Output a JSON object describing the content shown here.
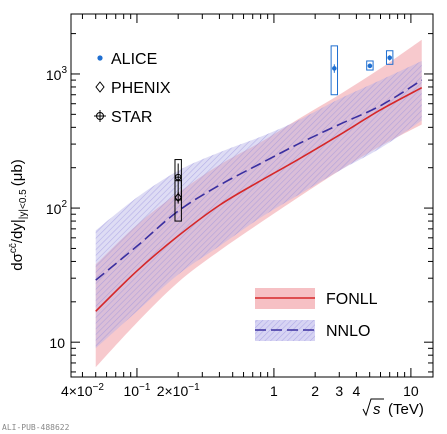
{
  "chart_data": {
    "type": "line",
    "x_scale": "log",
    "y_scale": "log",
    "xlim": [
      0.033,
      14.5
    ],
    "ylim": [
      5.5,
      2800
    ],
    "xlabel_root": "s",
    "xlabel_unit": "(TeV)",
    "ylabel": {
      "pre": "d",
      "sigma": "σ",
      "sup": "cc̄",
      "mid": "/dy|",
      "sub": "|y|<0.5",
      "unit": "(μb)"
    },
    "x_ticks": [
      {
        "value": 0.04,
        "mantissa": "4×10",
        "exp": "−2"
      },
      {
        "value": 0.1,
        "mantissa": "10",
        "exp": "−1"
      },
      {
        "value": 0.2,
        "mantissa": "2×10",
        "exp": "−1"
      },
      {
        "value": 1,
        "text": "1"
      },
      {
        "value": 2,
        "text": "2"
      },
      {
        "value": 3,
        "text": "3"
      },
      {
        "value": 4,
        "text": "4"
      },
      {
        "value": 10,
        "text": "10"
      }
    ],
    "y_ticks": [
      {
        "value": 10,
        "text": "10"
      },
      {
        "value": 100,
        "mantissa": "10",
        "exp": "2"
      },
      {
        "value": 1000,
        "mantissa": "10",
        "exp": "3"
      }
    ],
    "theory_series": [
      {
        "name": "FONLL",
        "color": "#d62728",
        "band_color": "#f6c0c4",
        "x": [
          0.05,
          0.1,
          0.2,
          0.4,
          0.8,
          1.5,
          3,
          6,
          12
        ],
        "y": [
          17,
          34,
          62,
          105,
          160,
          230,
          350,
          540,
          790
        ],
        "lo": [
          6.5,
          14,
          28,
          48,
          78,
          120,
          190,
          290,
          420
        ],
        "hi": [
          38,
          75,
          130,
          210,
          310,
          460,
          700,
          1100,
          1800
        ]
      },
      {
        "name": "NNLO",
        "color": "#3a2fa0",
        "band_color": "#b6b2e6",
        "x": [
          0.05,
          0.1,
          0.2,
          0.4,
          0.8,
          1.5,
          3,
          6,
          12
        ],
        "y": [
          29,
          52,
          95,
          148,
          215,
          300,
          420,
          580,
          900
        ],
        "lo": [
          9,
          17,
          32,
          52,
          85,
          125,
          190,
          280,
          450
        ],
        "hi": [
          68,
          120,
          190,
          260,
          340,
          450,
          650,
          900,
          1250
        ]
      }
    ],
    "data_series": [
      {
        "name": "ALICE",
        "marker": "dot",
        "color": "#1f6fd1",
        "points": [
          {
            "x": 2.76,
            "y": 1100,
            "err_lo": 80,
            "err_hi": 80,
            "sys_lo": 400,
            "sys_hi": 520
          },
          {
            "x": 5.02,
            "y": 1150,
            "err_lo": 40,
            "err_hi": 40,
            "sys_lo": 80,
            "sys_hi": 100
          },
          {
            "x": 7,
            "y": 1320,
            "err_lo": 60,
            "err_hi": 60,
            "sys_lo": 140,
            "sys_hi": 170
          }
        ]
      },
      {
        "name": "PHENIX",
        "marker": "diamond",
        "color": "#000000",
        "points": [
          {
            "x": 0.2,
            "y": 120,
            "err_lo": 12,
            "err_hi": 12,
            "sys_lo": 40,
            "sys_hi": 40
          }
        ]
      },
      {
        "name": "STAR",
        "marker": "crossed-circle",
        "color": "#000000",
        "points": [
          {
            "x": 0.2,
            "y": 170,
            "err_lo": 45,
            "err_hi": 45,
            "sys_lo": 55,
            "sys_hi": 60
          }
        ]
      }
    ],
    "legend_top_left": [
      "ALICE",
      "PHENIX",
      "STAR"
    ],
    "legend_bottom_right": [
      "FONLL",
      "NNLO"
    ],
    "footer_label": "ALI-PUB-488622"
  }
}
